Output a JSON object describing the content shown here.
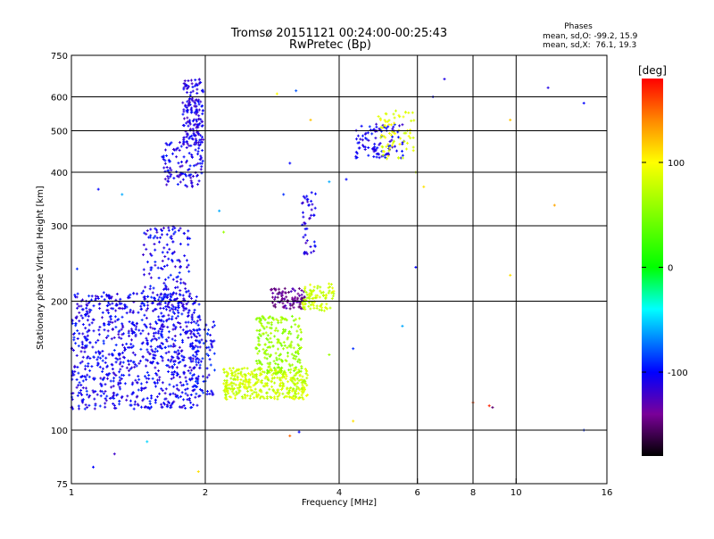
{
  "chart_data": {
    "type": "scatter",
    "title": "Tromsø 20151121 00:24:00-00:25:43",
    "subtitle": "RwPretec (Bp)",
    "xlabel": "Frequency [MHz]",
    "ylabel": "Stationary phase Virtual Height [km]",
    "x_scale": "log",
    "y_scale": "log",
    "xlim": [
      1,
      16
    ],
    "ylim": [
      75,
      750
    ],
    "xticks": [
      1,
      2,
      4,
      6,
      8,
      10,
      16
    ],
    "yticks": [
      75,
      100,
      200,
      300,
      400,
      500,
      600,
      750
    ],
    "x_gridlines": [
      2,
      4,
      6,
      8,
      10
    ],
    "y_gridlines": [
      100,
      200,
      300,
      400,
      500,
      600
    ],
    "stats": {
      "title": "Phases",
      "line1": "mean, sd,O: -99.2, 15.9",
      "line2": "mean, sd,X:  76.1, 19.3"
    },
    "colorbar": {
      "label": "[deg]",
      "range": [
        -180,
        180
      ],
      "ticks": [
        {
          "value": 100,
          "label": "100"
        },
        {
          "value": 0,
          "label": "0"
        },
        {
          "value": -100,
          "label": "-100"
        }
      ]
    },
    "clusters": [
      {
        "name": "low-freq blue echoes",
        "x_range": [
          1.0,
          1.95
        ],
        "y_range": [
          112,
          210
        ],
        "phase": -105,
        "count": 900
      },
      {
        "name": "low-freq blue column",
        "x_range": [
          1.45,
          1.85
        ],
        "y_range": [
          190,
          300
        ],
        "phase": -105,
        "count": 160
      },
      {
        "name": "upper trace blue",
        "x_range": [
          1.6,
          1.98
        ],
        "y_range": [
          370,
          470
        ],
        "phase": -108,
        "count": 110
      },
      {
        "name": "upper trace top",
        "x_range": [
          1.78,
          1.98
        ],
        "y_range": [
          460,
          660
        ],
        "phase": -110,
        "count": 170
      },
      {
        "name": "blue near 2 MHz",
        "x_range": [
          1.85,
          2.1
        ],
        "y_range": [
          120,
          180
        ],
        "phase": -100,
        "count": 90
      },
      {
        "name": "yellow-green X echoes",
        "x_range": [
          2.2,
          3.4
        ],
        "y_range": [
          118,
          140
        ],
        "phase": 80,
        "count": 380
      },
      {
        "name": "green X echoes",
        "x_range": [
          2.6,
          3.3
        ],
        "y_range": [
          135,
          185
        ],
        "phase": 60,
        "count": 220
      },
      {
        "name": "purple trace",
        "x_range": [
          2.8,
          3.35
        ],
        "y_range": [
          192,
          215
        ],
        "phase": -140,
        "count": 90
      },
      {
        "name": "green-yellow band",
        "x_range": [
          3.3,
          3.9
        ],
        "y_range": [
          190,
          220
        ],
        "phase": 80,
        "count": 90
      },
      {
        "name": "blue vertical trace",
        "x_range": [
          3.3,
          3.55
        ],
        "y_range": [
          255,
          360
        ],
        "phase": -110,
        "count": 45
      },
      {
        "name": "blue F-region",
        "x_range": [
          4.35,
          5.6
        ],
        "y_range": [
          430,
          520
        ],
        "phase": -105,
        "count": 100
      },
      {
        "name": "yellow F-region",
        "x_range": [
          4.9,
          5.9
        ],
        "y_range": [
          430,
          560
        ],
        "phase": 90,
        "count": 70
      }
    ],
    "points": [
      {
        "x": 1.03,
        "y": 238,
        "phase": -90
      },
      {
        "x": 1.12,
        "y": 82,
        "phase": -100
      },
      {
        "x": 1.25,
        "y": 88,
        "phase": -120
      },
      {
        "x": 1.48,
        "y": 94,
        "phase": -50
      },
      {
        "x": 1.15,
        "y": 365,
        "phase": -100
      },
      {
        "x": 1.3,
        "y": 355,
        "phase": -60
      },
      {
        "x": 1.93,
        "y": 80,
        "phase": 110
      },
      {
        "x": 2.15,
        "y": 325,
        "phase": -60
      },
      {
        "x": 2.2,
        "y": 290,
        "phase": 60
      },
      {
        "x": 2.9,
        "y": 610,
        "phase": 100
      },
      {
        "x": 3.0,
        "y": 355,
        "phase": -90
      },
      {
        "x": 3.2,
        "y": 620,
        "phase": -80
      },
      {
        "x": 3.1,
        "y": 420,
        "phase": -100
      },
      {
        "x": 3.1,
        "y": 97,
        "phase": 150
      },
      {
        "x": 3.45,
        "y": 530,
        "phase": 120
      },
      {
        "x": 3.25,
        "y": 99,
        "phase": -100
      },
      {
        "x": 3.8,
        "y": 380,
        "phase": -60
      },
      {
        "x": 3.8,
        "y": 150,
        "phase": 60
      },
      {
        "x": 4.15,
        "y": 385,
        "phase": -100
      },
      {
        "x": 4.3,
        "y": 155,
        "phase": -90
      },
      {
        "x": 4.3,
        "y": 105,
        "phase": 110
      },
      {
        "x": 5.95,
        "y": 240,
        "phase": -100
      },
      {
        "x": 5.95,
        "y": 400,
        "phase": 80
      },
      {
        "x": 5.55,
        "y": 175,
        "phase": -60
      },
      {
        "x": 6.2,
        "y": 370,
        "phase": 110
      },
      {
        "x": 6.5,
        "y": 600,
        "phase": -100
      },
      {
        "x": 6.9,
        "y": 660,
        "phase": -110
      },
      {
        "x": 8.0,
        "y": 116,
        "phase": 160
      },
      {
        "x": 8.7,
        "y": 114,
        "phase": 170
      },
      {
        "x": 8.85,
        "y": 113,
        "phase": -150
      },
      {
        "x": 9.7,
        "y": 230,
        "phase": 110
      },
      {
        "x": 9.7,
        "y": 530,
        "phase": 120
      },
      {
        "x": 11.8,
        "y": 630,
        "phase": -110
      },
      {
        "x": 12.2,
        "y": 335,
        "phase": 130
      },
      {
        "x": 14.2,
        "y": 100,
        "phase": -90
      },
      {
        "x": 14.2,
        "y": 580,
        "phase": -100
      }
    ]
  }
}
